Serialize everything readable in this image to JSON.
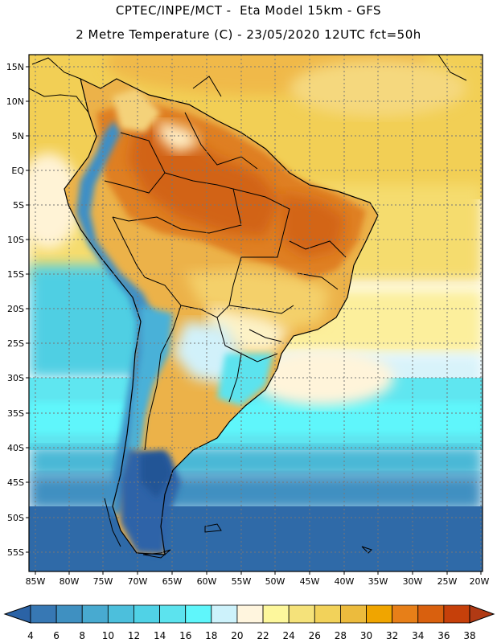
{
  "header": {
    "line1": "CPTEC/INPE/MCT -  Eta Model 15km - GFS",
    "line2": "2 Metre Temperature (C) - 23/05/2020 12UTC fct=50h"
  },
  "map": {
    "lat_labels": [
      "15N",
      "10N",
      "5N",
      "EQ",
      "5S",
      "10S",
      "15S",
      "20S",
      "25S",
      "30S",
      "35S",
      "40S",
      "45S",
      "50S",
      "55S"
    ],
    "lon_labels": [
      "85W",
      "80W",
      "75W",
      "70W",
      "65W",
      "60W",
      "55W",
      "50W",
      "45W",
      "40W",
      "35W",
      "30W",
      "25W",
      "20W"
    ]
  },
  "legend": {
    "values": [
      "4",
      "6",
      "8",
      "10",
      "12",
      "14",
      "16",
      "18",
      "20",
      "22",
      "24",
      "26",
      "28",
      "30",
      "32",
      "34",
      "36",
      "38"
    ],
    "colors": [
      "#2b63a6",
      "#3778b4",
      "#3f90c1",
      "#48aad0",
      "#4cbfdc",
      "#50d2e6",
      "#5ce3ee",
      "#5ff6fb",
      "#cdf2fb",
      "#fff5de",
      "#fdf79c",
      "#f5e27a",
      "#f2d25a",
      "#ecbb3d",
      "#f0a500",
      "#e77f18",
      "#d9600e",
      "#c6400a",
      "#b13a14"
    ]
  }
}
